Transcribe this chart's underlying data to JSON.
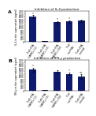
{
  "chart_A": {
    "title": "Inhibition of IL-4 production",
    "ylabel": "IL-4 in the supernatant (pg/ml)",
    "bars": [
      1800,
      30,
      1400,
      1450,
      1500
    ],
    "errors": [
      100,
      15,
      90,
      90,
      90
    ],
    "bar_color": "#0d1a6e",
    "ylim": [
      0,
      2200
    ],
    "ytick_step": 200,
    "label": "A",
    "categories": [
      "T cell+PHA\n(hAMSCs 1:1)",
      "T cell+PHA\n(hAMSCs 1:5)",
      "T cell+PHA\n(hAMSCs 1:10)",
      "T cell\n(no PHA)",
      "T cell+PHA\n(control)"
    ],
    "significance": [
      "*",
      "",
      "*",
      "*",
      ""
    ]
  },
  "chart_B": {
    "title": "Inhibition of IFN-γ production",
    "ylabel": "IFN-γ in the supernatant (pg/ml)",
    "bars": [
      1500,
      30,
      1350,
      1200,
      1000
    ],
    "errors": [
      150,
      15,
      110,
      110,
      160
    ],
    "bar_color": "#0d1a6e",
    "ylim": [
      0,
      2200
    ],
    "ytick_step": 200,
    "label": "B",
    "categories": [
      "T cell+PHA\n(hAMSCs 1:1)",
      "T cell+PHA\n(hAMSCs 1:5)",
      "T cell+PHA\n(hAMSCs 1:10)",
      "T cell\n(no PHA)",
      "T cell+PHA\n(control)"
    ],
    "significance": [
      "*",
      "",
      "",
      "*",
      "**"
    ]
  },
  "background_color": "#ffffff",
  "title_fontsize": 3.0,
  "label_fontsize": 2.2,
  "tick_fontsize": 1.9,
  "bar_width": 0.55
}
